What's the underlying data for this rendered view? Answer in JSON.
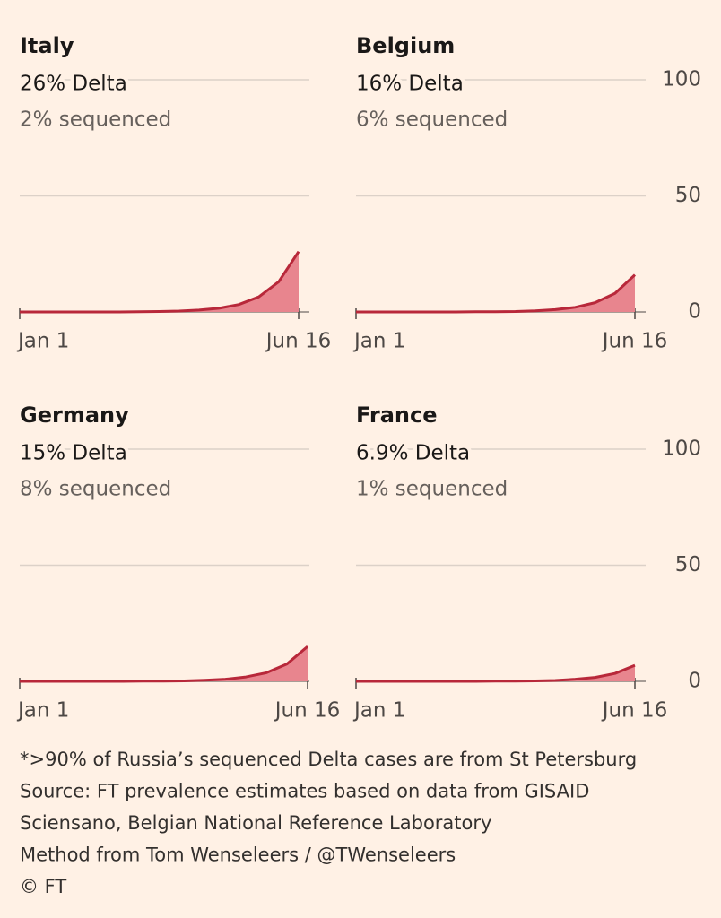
{
  "chart_data": [
    {
      "type": "area",
      "title": "Italy",
      "subtitle": "26% Delta",
      "annotation": "2% sequenced",
      "categories": [
        "Jan 1",
        null,
        null,
        null,
        null,
        null,
        null,
        null,
        null,
        null,
        null,
        null,
        null,
        null,
        "Jun 16"
      ],
      "values": [
        0,
        0,
        0,
        0,
        0,
        0,
        0.1,
        0.2,
        0.4,
        0.8,
        1.6,
        3.2,
        6.5,
        13,
        26
      ],
      "color": "#b8283a",
      "fill_color": "#e8858e",
      "ylim": [
        0,
        100
      ],
      "yticks": [
        0,
        50,
        100
      ],
      "grid": true
    },
    {
      "type": "area",
      "title": "Belgium",
      "subtitle": "16% Delta",
      "annotation": "6% sequenced",
      "categories": [
        "Jan 1",
        null,
        null,
        null,
        null,
        null,
        null,
        null,
        null,
        null,
        null,
        null,
        null,
        null,
        "Jun 16"
      ],
      "values": [
        0,
        0,
        0,
        0,
        0,
        0,
        0.1,
        0.1,
        0.2,
        0.5,
        1,
        2,
        4,
        8,
        16
      ],
      "color": "#b8283a",
      "fill_color": "#e8858e",
      "ylim": [
        0,
        100
      ],
      "yticks": [
        0,
        50,
        100
      ],
      "grid": true
    },
    {
      "type": "area",
      "title": "Germany",
      "subtitle": "15% Delta",
      "annotation": "8% sequenced",
      "categories": [
        "Jan 1",
        null,
        null,
        null,
        null,
        null,
        null,
        null,
        null,
        null,
        null,
        null,
        null,
        null,
        "Jun 16"
      ],
      "values": [
        0,
        0,
        0,
        0,
        0,
        0,
        0.1,
        0.1,
        0.2,
        0.5,
        0.9,
        1.9,
        3.7,
        7.5,
        15
      ],
      "color": "#b8283a",
      "fill_color": "#e8858e",
      "ylim": [
        0,
        100
      ],
      "yticks": [
        0,
        50,
        100
      ],
      "grid": true
    },
    {
      "type": "area",
      "title": "France",
      "subtitle": "6.9% Delta",
      "annotation": "1% sequenced",
      "categories": [
        "Jan 1",
        null,
        null,
        null,
        null,
        null,
        null,
        null,
        null,
        null,
        null,
        null,
        null,
        null,
        "Jun 16"
      ],
      "values": [
        0,
        0,
        0,
        0,
        0,
        0,
        0,
        0.1,
        0.1,
        0.2,
        0.4,
        0.9,
        1.7,
        3.4,
        6.9
      ],
      "color": "#b8283a",
      "fill_color": "#e8858e",
      "ylim": [
        0,
        100
      ],
      "yticks": [
        0,
        50,
        100
      ],
      "grid": true
    }
  ],
  "footnotes": [
    "*>90% of Russia’s sequenced Delta cases are from St Petersburg",
    "Source: FT prevalence estimates based on data from GISAID",
    "Sciensano, Belgian National Reference Laboratory",
    "Method from Tom Wenseleers / @TWenseleers",
    "© FT"
  ]
}
